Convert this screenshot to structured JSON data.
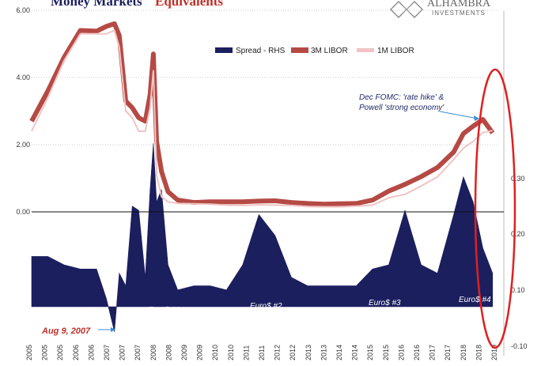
{
  "title": {
    "part1": "Money Markets",
    "part2": "Equivalents"
  },
  "brand": {
    "name": "ALHAMBRA",
    "sub": "INVESTMENTS"
  },
  "colors": {
    "spread": "#1b1f5e",
    "libor3m": "#b54a45",
    "libor1m": "#f0c4c4",
    "highlight": "#e02020",
    "title_accent": "#c0302a"
  },
  "icons": {
    "logo": "alhambra-logo-icon"
  },
  "chart_data": {
    "type": "line",
    "x_ticks": [
      "2005",
      "2005",
      "2005",
      "2006",
      "2006",
      "2007",
      "2007",
      "2007",
      "2008",
      "2008",
      "2009",
      "2009",
      "2010",
      "2010",
      "2011",
      "2011",
      "2012",
      "2012",
      "2013",
      "2013",
      "2014",
      "2014",
      "2015",
      "2015",
      "2016",
      "2016",
      "2017",
      "2017",
      "2018",
      "2018",
      "2019"
    ],
    "y_left": {
      "ticks": [
        "6.00",
        "4.00",
        "2.00",
        "0.00"
      ],
      "ylim": [
        0,
        6
      ]
    },
    "y_right": {
      "ticks": [
        "0.30",
        "0.20",
        "0.10",
        "-0.10"
      ],
      "ylim": [
        -0.1,
        0.4
      ]
    },
    "x": [
      2005.0,
      2005.5,
      2006.0,
      2006.5,
      2007.0,
      2007.3,
      2007.55,
      2007.7,
      2007.9,
      2008.1,
      2008.3,
      2008.5,
      2008.65,
      2008.75,
      2008.85,
      2009.0,
      2009.2,
      2009.5,
      2010.0,
      2010.5,
      2011.0,
      2011.5,
      2012.0,
      2012.5,
      2013.0,
      2013.5,
      2014.0,
      2014.5,
      2015.0,
      2015.5,
      2016.0,
      2016.5,
      2017.0,
      2017.5,
      2018.0,
      2018.3,
      2018.6,
      2018.9,
      2019.2
    ],
    "series": [
      {
        "name": "Spread - RHS",
        "axis": "right",
        "values": [
          0.12,
          0.12,
          0.1,
          0.09,
          0.09,
          0.02,
          -0.06,
          0.08,
          0.05,
          0.24,
          0.23,
          0.07,
          0.28,
          0.39,
          0.25,
          0.28,
          0.1,
          0.04,
          0.05,
          0.05,
          0.04,
          0.1,
          0.22,
          0.17,
          0.07,
          0.05,
          0.05,
          0.05,
          0.05,
          0.09,
          0.1,
          0.23,
          0.1,
          0.08,
          0.22,
          0.31,
          0.25,
          0.14,
          0.08
        ]
      },
      {
        "name": "3M LIBOR",
        "axis": "left",
        "values": [
          2.7,
          3.6,
          4.6,
          5.4,
          5.38,
          5.52,
          5.6,
          5.25,
          3.3,
          3.1,
          2.8,
          2.7,
          3.5,
          4.7,
          2.1,
          1.2,
          0.6,
          0.35,
          0.28,
          0.3,
          0.3,
          0.3,
          0.32,
          0.33,
          0.28,
          0.25,
          0.23,
          0.24,
          0.25,
          0.35,
          0.62,
          0.82,
          1.05,
          1.32,
          1.78,
          2.33,
          2.55,
          2.75,
          2.35
        ]
      },
      {
        "name": "1M LIBOR",
        "axis": "left",
        "values": [
          2.4,
          3.4,
          4.5,
          5.3,
          5.3,
          5.3,
          5.4,
          4.9,
          3.0,
          2.8,
          2.4,
          2.4,
          3.1,
          4.2,
          1.1,
          0.45,
          0.3,
          0.25,
          0.24,
          0.23,
          0.2,
          0.19,
          0.21,
          0.2,
          0.19,
          0.16,
          0.15,
          0.15,
          0.17,
          0.2,
          0.42,
          0.52,
          0.77,
          1.04,
          1.56,
          1.9,
          2.1,
          2.36,
          2.42
        ]
      }
    ],
    "legend": [
      "Spread - RHS",
      "3M LIBOR",
      "1M LIBOR"
    ],
    "legend_position": "top-right",
    "annotations": {
      "fomc": "Dec FOMC: 'rate hike' &\nPowell 'strong economy'",
      "aug": "Aug 9, 2007",
      "euro1": "Euro$ #1",
      "euro2": "Euro$ #2",
      "euro3": "Euro$ #3",
      "euro4": "Euro$ #4"
    },
    "grid": "horizontal dotted"
  }
}
